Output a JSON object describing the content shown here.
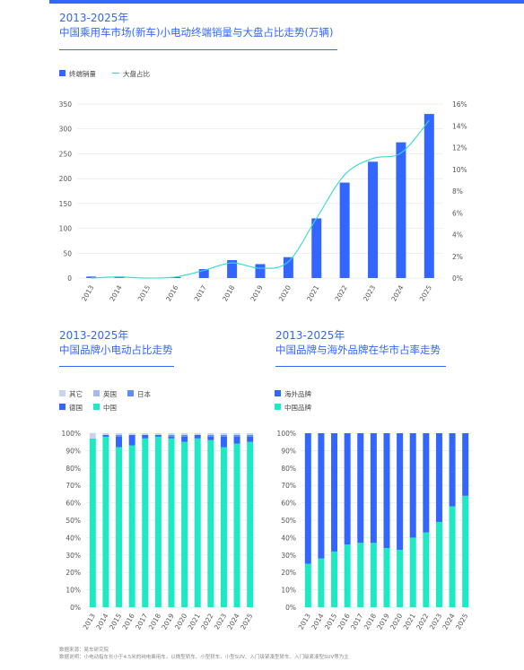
{
  "chart1": {
    "year_range": "2013-2025年",
    "title": "中国乘用车市场(新车)小电动终端销量与大盘占比走势(万辆)"
  },
  "chart2": {
    "year_range": "2013-2025年",
    "title": "中国品牌小电动占比走势"
  },
  "chart3": {
    "year_range": "2013-2025年",
    "title": "中国品牌与海外品牌在华市占率走势"
  },
  "footer": {
    "source": "数据来源：易车研究院",
    "note": "数据说明：小电动指车长小于4.5米的纯电乘用车，以微型轿车、小型轿车、小型SUV、入门级紧凑型轿车、入门级紧凑型SUV等为主"
  },
  "chart_data": [
    {
      "type": "bar",
      "categories": [
        "2013",
        "2014",
        "2015",
        "2016",
        "2017",
        "2018",
        "2019",
        "2020",
        "2021",
        "2022",
        "2023",
        "2024",
        "2025"
      ],
      "series": [
        {
          "name": "终端销量",
          "type": "bar",
          "axis": "left",
          "color": "#3366ff",
          "values": [
            3,
            3,
            1,
            2,
            18,
            36,
            28,
            42,
            120,
            192,
            234,
            273,
            330
          ]
        },
        {
          "name": "大盘占比",
          "type": "line",
          "axis": "right",
          "color": "#33ddcc",
          "values": [
            0.0,
            0.1,
            0.0,
            0.1,
            0.7,
            1.4,
            0.9,
            1.5,
            5.5,
            9.5,
            11.0,
            11.5,
            14.5
          ]
        }
      ],
      "ylim": [
        0,
        350
      ],
      "yticks": [
        "0",
        "50",
        "100",
        "150",
        "200",
        "250",
        "300",
        "350"
      ],
      "y2lim": [
        0,
        16
      ],
      "y2ticks": [
        "0%",
        "2%",
        "4%",
        "6%",
        "8%",
        "10%",
        "12%",
        "14%",
        "16%"
      ],
      "legend_position": "top-left"
    },
    {
      "type": "bar",
      "stacked": true,
      "categories": [
        "2013",
        "2014",
        "2015",
        "2016",
        "2017",
        "2018",
        "2019",
        "2020",
        "2021",
        "2022",
        "2023",
        "2024",
        "2025"
      ],
      "series": [
        {
          "name": "中国",
          "color": "#1de9c5",
          "values": [
            97,
            98,
            92,
            93,
            97,
            98,
            97,
            95,
            97,
            96,
            92,
            94,
            95
          ]
        },
        {
          "name": "德国",
          "color": "#3366ff",
          "values": [
            0,
            1,
            6,
            6,
            2,
            1,
            1,
            3,
            2,
            2,
            6,
            4,
            3
          ]
        },
        {
          "name": "日本",
          "color": "#5b8ff9",
          "values": [
            0,
            0,
            1,
            0,
            0,
            0,
            1,
            1,
            0,
            1,
            1,
            1,
            1
          ]
        },
        {
          "name": "英国",
          "color": "#a8b9f0",
          "values": [
            0,
            0,
            0,
            0,
            0,
            0,
            0,
            0,
            0,
            0,
            0,
            0,
            0
          ]
        },
        {
          "name": "其它",
          "color": "#c6d4f2",
          "values": [
            3,
            1,
            1,
            1,
            1,
            1,
            1,
            1,
            1,
            1,
            1,
            1,
            1
          ]
        }
      ],
      "legend": [
        "其它",
        "英国",
        "日本",
        "德国",
        "中国"
      ],
      "ylim": [
        0,
        100
      ],
      "yticks": [
        "0%",
        "10%",
        "20%",
        "30%",
        "40%",
        "50%",
        "60%",
        "70%",
        "80%",
        "90%",
        "100%"
      ]
    },
    {
      "type": "bar",
      "stacked": true,
      "categories": [
        "2013",
        "2014",
        "2015",
        "2016",
        "2017",
        "2018",
        "2019",
        "2020",
        "2021",
        "2022",
        "2023",
        "2024",
        "2025"
      ],
      "series": [
        {
          "name": "中国品牌",
          "color": "#1de9c5",
          "values": [
            25,
            28,
            32,
            36,
            37,
            37,
            34,
            33,
            40,
            43,
            49,
            58,
            64
          ]
        },
        {
          "name": "海外品牌",
          "color": "#3366ff",
          "values": [
            75,
            72,
            68,
            64,
            63,
            63,
            66,
            67,
            60,
            57,
            51,
            42,
            36
          ]
        }
      ],
      "legend": [
        "海外品牌",
        "中国品牌"
      ],
      "ylim": [
        0,
        100
      ],
      "yticks": [
        "0%",
        "10%",
        "20%",
        "30%",
        "40%",
        "50%",
        "60%",
        "70%",
        "80%",
        "90%",
        "100%"
      ]
    }
  ]
}
